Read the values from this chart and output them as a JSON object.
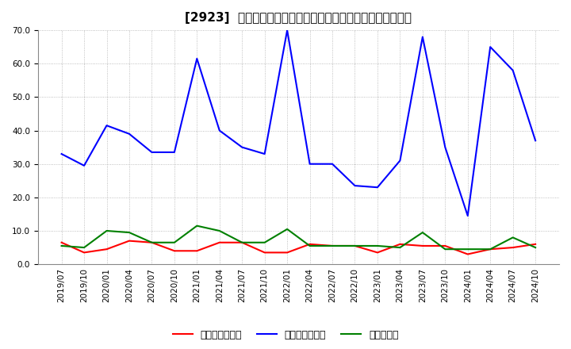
{
  "title": "[2923]  売上債権回転率、買入債務回転率、在庫回転率の推移",
  "ylim": [
    0.0,
    70.0
  ],
  "yticks": [
    0.0,
    10.0,
    20.0,
    30.0,
    40.0,
    50.0,
    60.0,
    70.0
  ],
  "x_labels": [
    "2019/07",
    "2019/10",
    "2020/01",
    "2020/04",
    "2020/07",
    "2020/10",
    "2021/01",
    "2021/04",
    "2021/07",
    "2021/10",
    "2022/01",
    "2022/04",
    "2022/07",
    "2022/10",
    "2023/01",
    "2023/04",
    "2023/07",
    "2023/10",
    "2024/01",
    "2024/04",
    "2024/07",
    "2024/10"
  ],
  "売上債権回転率": [
    6.5,
    3.5,
    4.5,
    7.0,
    6.5,
    4.0,
    4.0,
    6.5,
    6.5,
    3.5,
    3.5,
    6.0,
    5.5,
    5.5,
    3.5,
    6.0,
    5.5,
    5.5,
    3.0,
    4.5,
    5.0,
    6.0
  ],
  "買入債務回転率": [
    33.0,
    29.5,
    41.5,
    39.0,
    33.5,
    33.5,
    61.5,
    40.0,
    35.0,
    33.0,
    70.0,
    30.0,
    30.0,
    23.5,
    23.0,
    31.0,
    68.0,
    35.0,
    14.5,
    65.0,
    58.0,
    37.0
  ],
  "在庫回転率": [
    5.5,
    5.0,
    10.0,
    9.5,
    6.5,
    6.5,
    11.5,
    10.0,
    6.5,
    6.5,
    10.5,
    5.5,
    5.5,
    5.5,
    5.5,
    5.0,
    9.5,
    4.5,
    4.5,
    4.5,
    8.0,
    5.0
  ],
  "line_colors": {
    "売上債権回転率": "#ff0000",
    "買入債務回転率": "#0000ff",
    "在庫回転率": "#008000"
  },
  "legend_labels": [
    "売上債権回転率",
    "買入債務回転率",
    "在庫回転率"
  ],
  "background_color": "#ffffff",
  "grid_color": "#999999",
  "title_fontsize": 11,
  "tick_fontsize": 7.5,
  "legend_fontsize": 9
}
